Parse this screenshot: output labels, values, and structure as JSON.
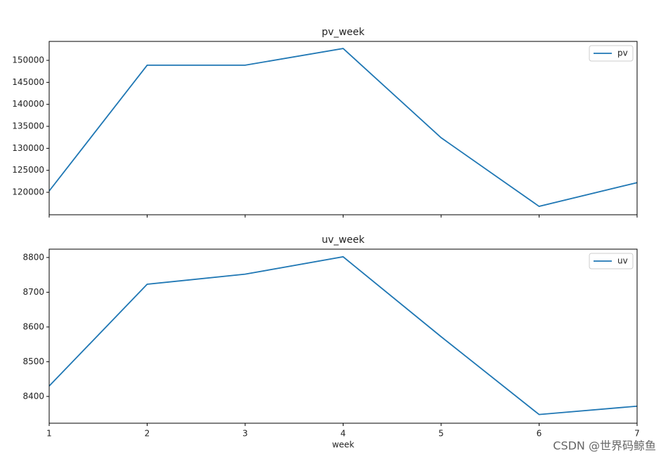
{
  "chart_data": [
    {
      "type": "line",
      "title": "pv_week",
      "x": [
        1,
        2,
        3,
        4,
        5,
        6,
        7
      ],
      "series": [
        {
          "name": "pv",
          "color": "#1f77b4",
          "values": [
            120300,
            148900,
            148900,
            152700,
            132400,
            116800,
            122200
          ]
        }
      ],
      "xlim": [
        1,
        7
      ],
      "xticks": [
        1,
        2,
        3,
        4,
        5,
        6,
        7
      ],
      "xtick_labels_shown": false,
      "ylim": [
        114894,
        154308
      ],
      "yticks": [
        120000,
        125000,
        130000,
        135000,
        140000,
        145000,
        150000
      ],
      "legend": "upper right"
    },
    {
      "type": "line",
      "title": "uv_week",
      "x": [
        1,
        2,
        3,
        4,
        5,
        6,
        7
      ],
      "xlabel": "week",
      "series": [
        {
          "name": "uv",
          "color": "#1f77b4",
          "values": [
            8430,
            8723,
            8752,
            8802,
            8572,
            8348,
            8372
          ]
        }
      ],
      "xlim": [
        1,
        7
      ],
      "xticks": [
        1,
        2,
        3,
        4,
        5,
        6,
        7
      ],
      "xtick_labels_shown": true,
      "ylim": [
        8323,
        8824
      ],
      "yticks": [
        8400,
        8500,
        8600,
        8700,
        8800
      ],
      "legend": "upper right"
    }
  ],
  "watermark": "CSDN @世界码鲸鱼"
}
